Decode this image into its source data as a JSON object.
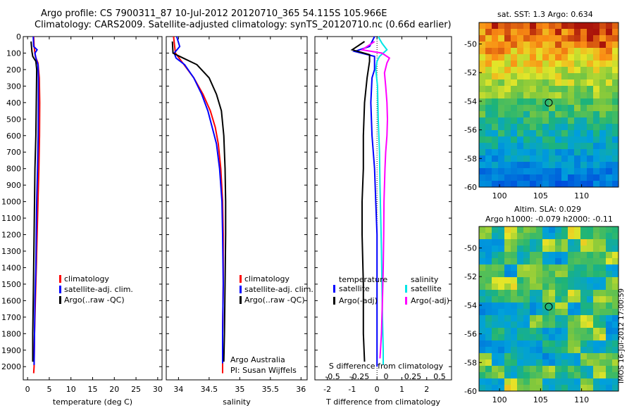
{
  "header": {
    "line1": "Argo profile: CS 7900311_87 10-Jul-2012 20120710_365 54.115S 105.966E",
    "line2": "Climatology: CARS2009. Satellite-adjusted climatology: synTS_20120710.nc (0.66d earlier)"
  },
  "map_top": {
    "title": "sat. SST: 1.3 Argo: 0.634"
  },
  "map_bottom": {
    "title1": "Altim. SLA: 0.029",
    "title2": "Argo h1000: -0.079 h2000: -0.11"
  },
  "stamp": "IMOS 16-Jul-2012 17:00:59",
  "colors": {
    "climatology": "#ff0000",
    "satellite_adj": "#0000ff",
    "argo": "#000000",
    "sal_satellite": "#00e5e5",
    "sal_argo": "#ff00ff"
  },
  "chart_data": [
    {
      "type": "line",
      "xlabel": "temperature (deg C)",
      "ylabel": "",
      "xlim": [
        -1,
        31
      ],
      "ylim": [
        2080,
        0
      ],
      "xticks": [
        0,
        5,
        10,
        15,
        20,
        25,
        30
      ],
      "yticks": [
        0,
        100,
        200,
        300,
        400,
        500,
        600,
        700,
        800,
        900,
        1000,
        1100,
        1200,
        1300,
        1400,
        1500,
        1600,
        1700,
        1800,
        1900,
        2000
      ],
      "legend": [
        "climatology",
        "satellite-adj. clim.",
        "Argo(..raw -QC)"
      ],
      "series": [
        {
          "name": "climatology",
          "points": [
            [
              1.4,
              0
            ],
            [
              1.5,
              60
            ],
            [
              1.8,
              120
            ],
            [
              2.4,
              160
            ],
            [
              2.7,
              250
            ],
            [
              2.8,
              400
            ],
            [
              2.75,
              600
            ],
            [
              2.6,
              800
            ],
            [
              2.4,
              1000
            ],
            [
              2.2,
              1200
            ],
            [
              2.0,
              1400
            ],
            [
              1.8,
              1600
            ],
            [
              1.6,
              1800
            ],
            [
              1.5,
              2000
            ],
            [
              1.4,
              2040
            ]
          ]
        },
        {
          "name": "satellite-adj. clim.",
          "points": [
            [
              1.3,
              0
            ],
            [
              1.4,
              60
            ],
            [
              2.2,
              80
            ],
            [
              1.7,
              100
            ],
            [
              2.0,
              140
            ],
            [
              2.4,
              170
            ],
            [
              2.5,
              250
            ],
            [
              2.5,
              400
            ],
            [
              2.45,
              600
            ],
            [
              2.3,
              800
            ],
            [
              2.1,
              1000
            ],
            [
              2.0,
              1200
            ],
            [
              1.9,
              1400
            ],
            [
              1.7,
              1600
            ],
            [
              1.6,
              1800
            ],
            [
              1.5,
              1990
            ]
          ]
        },
        {
          "name": "Argo(..raw -QC)",
          "points": [
            [
              0.8,
              30
            ],
            [
              1.0,
              90
            ],
            [
              1.2,
              120
            ],
            [
              1.9,
              150
            ],
            [
              2.1,
              200
            ],
            [
              2.0,
              400
            ],
            [
              1.9,
              600
            ],
            [
              1.7,
              800
            ],
            [
              1.6,
              1000
            ],
            [
              1.5,
              1200
            ],
            [
              1.4,
              1400
            ],
            [
              1.3,
              1600
            ],
            [
              1.2,
              1800
            ],
            [
              1.2,
              1970
            ]
          ]
        }
      ]
    },
    {
      "type": "line",
      "xlabel": "salinity",
      "xlim": [
        33.8,
        36.1
      ],
      "ylim": [
        2080,
        0
      ],
      "xticks": [
        34,
        34.5,
        35,
        35.5,
        36
      ],
      "legend": [
        "climatology",
        "satellite-adj. clim.",
        "Argo(..raw -QC)"
      ],
      "annotation": [
        "Argo Australia",
        "PI: Susan Wijffels"
      ],
      "series": [
        {
          "name": "climatology",
          "points": [
            [
              33.92,
              0
            ],
            [
              33.95,
              100
            ],
            [
              34.05,
              150
            ],
            [
              34.25,
              250
            ],
            [
              34.4,
              350
            ],
            [
              34.52,
              450
            ],
            [
              34.6,
              550
            ],
            [
              34.65,
              650
            ],
            [
              34.69,
              800
            ],
            [
              34.72,
              1000
            ],
            [
              34.73,
              1200
            ],
            [
              34.73,
              1500
            ],
            [
              34.72,
              1800
            ],
            [
              34.72,
              2000
            ],
            [
              34.72,
              2040
            ]
          ]
        },
        {
          "name": "satellite-adj. clim.",
          "points": [
            [
              33.97,
              0
            ],
            [
              34.02,
              60
            ],
            [
              33.93,
              100
            ],
            [
              33.96,
              130
            ],
            [
              34.1,
              170
            ],
            [
              34.25,
              250
            ],
            [
              34.38,
              350
            ],
            [
              34.48,
              450
            ],
            [
              34.55,
              550
            ],
            [
              34.62,
              650
            ],
            [
              34.67,
              800
            ],
            [
              34.71,
              1000
            ],
            [
              34.72,
              1200
            ],
            [
              34.73,
              1500
            ],
            [
              34.72,
              1800
            ],
            [
              34.72,
              1980
            ]
          ]
        },
        {
          "name": "Argo(..raw -QC)",
          "points": [
            [
              33.9,
              30
            ],
            [
              33.91,
              100
            ],
            [
              34.02,
              120
            ],
            [
              34.3,
              170
            ],
            [
              34.5,
              250
            ],
            [
              34.62,
              350
            ],
            [
              34.7,
              450
            ],
            [
              34.74,
              600
            ],
            [
              34.76,
              800
            ],
            [
              34.77,
              1000
            ],
            [
              34.77,
              1200
            ],
            [
              34.76,
              1500
            ],
            [
              34.75,
              1800
            ],
            [
              34.74,
              1970
            ]
          ]
        }
      ]
    },
    {
      "type": "line",
      "xlabel": "T difference from climatology",
      "xlabel2": "S difference from climatology",
      "xlim": [
        -2.5,
        3
      ],
      "ylim": [
        2080,
        0
      ],
      "xticks": [
        -2,
        -1,
        0,
        1,
        2
      ],
      "xticks2": [
        -0.5,
        -0.25,
        0,
        0.25,
        0.5
      ],
      "legend_titles": [
        "temperature",
        "salinity"
      ],
      "legend": [
        "satellite",
        "Argo(-adj)",
        "satellite",
        "Argo(-adj)"
      ],
      "series": [
        {
          "name": "satellite",
          "points": [
            [
              -0.1,
              0
            ],
            [
              -0.3,
              60
            ],
            [
              -0.9,
              90
            ],
            [
              -0.1,
              120
            ],
            [
              -0.1,
              200
            ],
            [
              -0.2,
              250
            ],
            [
              -0.25,
              400
            ],
            [
              -0.2,
              600
            ],
            [
              -0.1,
              800
            ],
            [
              -0.05,
              1000
            ],
            [
              0.0,
              1200
            ],
            [
              0.0,
              1500
            ],
            [
              0.0,
              1800
            ],
            [
              0.0,
              2000
            ]
          ]
        },
        {
          "name": "Argo(-adj)",
          "points": [
            [
              -0.5,
              30
            ],
            [
              -1.0,
              80
            ],
            [
              -0.3,
              110
            ],
            [
              -0.3,
              150
            ],
            [
              -0.4,
              250
            ],
            [
              -0.5,
              400
            ],
            [
              -0.55,
              600
            ],
            [
              -0.55,
              800
            ],
            [
              -0.6,
              1000
            ],
            [
              -0.6,
              1200
            ],
            [
              -0.55,
              1500
            ],
            [
              -0.55,
              1800
            ],
            [
              -0.5,
              1970
            ]
          ]
        },
        {
          "name": "satellite",
          "points": [
            [
              0.05,
              0
            ],
            [
              0.2,
              40
            ],
            [
              0.4,
              80
            ],
            [
              0.1,
              120
            ],
            [
              0.0,
              150
            ],
            [
              -0.05,
              200
            ],
            [
              0.02,
              300
            ],
            [
              0.05,
              500
            ],
            [
              0.1,
              700
            ],
            [
              0.12,
              900
            ],
            [
              0.15,
              1100
            ],
            [
              0.18,
              1300
            ],
            [
              0.2,
              1500
            ],
            [
              0.22,
              1700
            ],
            [
              0.25,
              1900
            ],
            [
              0.25,
              1990
            ]
          ]
        },
        {
          "name": "Argo(-adj)",
          "points": [
            [
              -0.1,
              30
            ],
            [
              -0.6,
              80
            ],
            [
              0.2,
              100
            ],
            [
              0.5,
              130
            ],
            [
              0.4,
              160
            ],
            [
              0.3,
              220
            ],
            [
              0.35,
              300
            ],
            [
              0.4,
              400
            ],
            [
              0.42,
              500
            ],
            [
              0.4,
              600
            ],
            [
              0.35,
              700
            ],
            [
              0.32,
              800
            ],
            [
              0.3,
              900
            ],
            [
              0.28,
              1000
            ],
            [
              0.27,
              1200
            ],
            [
              0.25,
              1400
            ],
            [
              0.22,
              1600
            ],
            [
              0.18,
              1800
            ],
            [
              0.12,
              1950
            ]
          ]
        }
      ]
    },
    {
      "type": "heatmap",
      "title": "sat. SST: 1.3 Argo: 0.634",
      "xlim": [
        97.5,
        114.5
      ],
      "ylim": [
        -60,
        -48.5
      ],
      "xticks": [
        100,
        105,
        110
      ],
      "yticks": [
        -50,
        -52,
        -54,
        -56,
        -58,
        -60
      ],
      "marker": [
        106,
        -54.1
      ]
    },
    {
      "type": "heatmap",
      "title": "Argo h1000: -0.079 h2000: -0.11",
      "xlim": [
        97.5,
        114.5
      ],
      "ylim": [
        -60,
        -48.5
      ],
      "xticks": [
        100,
        105,
        110
      ],
      "yticks": [
        -50,
        -52,
        -54,
        -56,
        -58,
        -60
      ],
      "marker": [
        106,
        -54.1
      ]
    }
  ]
}
